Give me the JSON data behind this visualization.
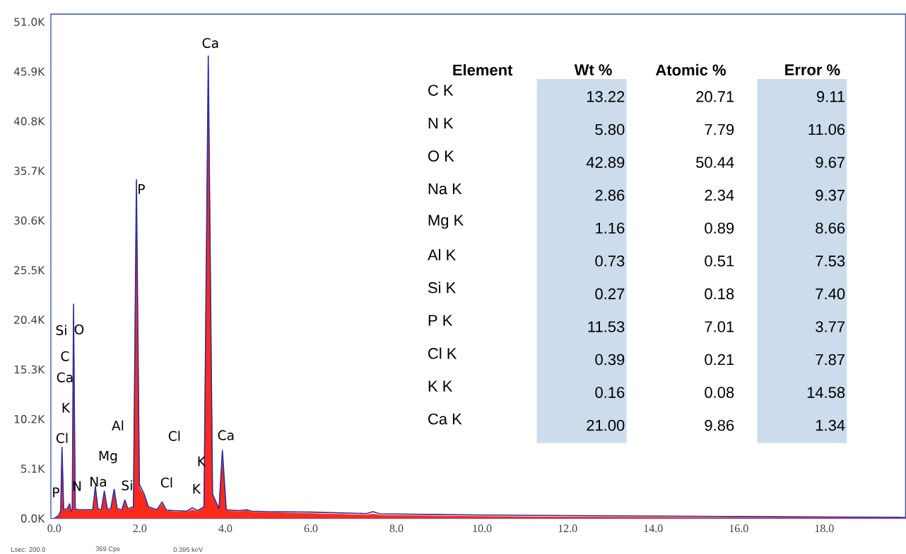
{
  "chart_data": {
    "type": "area",
    "x": [
      0,
      0.1,
      0.15,
      0.18,
      0.22,
      0.3,
      0.36,
      0.39,
      0.42,
      0.45,
      0.49,
      0.55,
      0.7,
      0.9,
      0.96,
      1.02,
      1.1,
      1.17,
      1.24,
      1.32,
      1.4,
      1.47,
      1.58,
      1.65,
      1.72,
      1.85,
      1.92,
      1.99,
      2.1,
      2.2,
      2.4,
      2.52,
      2.62,
      2.8,
      3.1,
      3.23,
      3.35,
      3.5,
      3.6,
      3.7,
      3.85,
      3.93,
      4.02,
      4.3,
      4.5,
      4.6,
      5.0,
      6.0,
      7.3,
      7.45,
      7.6,
      9.0,
      10.0,
      12.0,
      14.0,
      16.0,
      18.0,
      19.9
    ],
    "series": [
      {
        "color": "#ff2a1a",
        "values": [
          0,
          200,
          700,
          6800,
          800,
          900,
          1300,
          600,
          800,
          20500,
          900,
          800,
          800,
          800,
          2900,
          900,
          800,
          2500,
          850,
          900,
          2700,
          900,
          800,
          1700,
          900,
          1100,
          33000,
          3200,
          2300,
          1100,
          800,
          1500,
          750,
          700,
          650,
          900,
          700,
          1100,
          46500,
          2300,
          900,
          6600,
          800,
          700,
          800,
          650,
          600,
          500,
          350,
          450,
          330,
          250,
          200,
          150,
          120,
          100,
          80,
          50
        ]
      },
      {
        "type": "line",
        "color": "#2a2fa0",
        "values": [
          0,
          300,
          800,
          7300,
          900,
          1000,
          1500,
          700,
          900,
          22000,
          1000,
          900,
          900,
          900,
          3300,
          1000,
          900,
          2800,
          950,
          1000,
          3000,
          1000,
          900,
          1900,
          1000,
          1200,
          34800,
          3500,
          2500,
          1200,
          900,
          1700,
          850,
          800,
          750,
          1100,
          800,
          1200,
          47500,
          2500,
          1000,
          7000,
          900,
          800,
          900,
          750,
          700,
          650,
          500,
          700,
          480,
          400,
          350,
          300,
          250,
          200,
          150,
          100
        ]
      }
    ],
    "xlim": [
      -0.08,
      19.9
    ],
    "ylim": [
      0,
      51800
    ],
    "xticks": [
      {
        "value": 0,
        "label": "0.0"
      },
      {
        "value": 2,
        "label": "2.0"
      },
      {
        "value": 4,
        "label": "4.0"
      },
      {
        "value": 6,
        "label": "6.0"
      },
      {
        "value": 8,
        "label": "8.0"
      },
      {
        "value": 10,
        "label": "10.0"
      },
      {
        "value": 12,
        "label": "12.0"
      },
      {
        "value": 14,
        "label": "14.0"
      },
      {
        "value": 16,
        "label": "16.0"
      },
      {
        "value": 18,
        "label": "18.0"
      }
    ],
    "yticks": [
      {
        "value": 0,
        "label": "0.0K"
      },
      {
        "value": 5100,
        "label": "5.1K"
      },
      {
        "value": 10200,
        "label": "10.2K"
      },
      {
        "value": 15300,
        "label": "15.3K"
      },
      {
        "value": 20400,
        "label": "20.4K"
      },
      {
        "value": 25500,
        "label": "25.5K"
      },
      {
        "value": 30600,
        "label": "30.6K"
      },
      {
        "value": 35700,
        "label": "35.7K"
      },
      {
        "value": 40800,
        "label": "40.8K"
      },
      {
        "value": 45900,
        "label": "45.9K"
      },
      {
        "value": 51000,
        "label": "51.0K"
      }
    ],
    "annotations": [
      "Element",
      "Wt %",
      "Atomic %",
      "Error %",
      "C  K",
      "13.22",
      "20.71",
      "9.11",
      "N  K",
      "5.80",
      "7.79",
      "11.06",
      "O  K",
      "42.89",
      "50.44",
      "9.67",
      "Na K",
      "2.86",
      "2.34",
      "9.37",
      "Mg K",
      "1.16",
      "0.89",
      "8.66",
      "Al K",
      "0.73",
      "0.51",
      "7.53",
      "Si K",
      "0.27",
      "0.18",
      "7.40",
      "P  K",
      "11.53",
      "7.01",
      "3.77",
      "Cl K",
      "0.39",
      "0.21",
      "7.87",
      "K  K",
      "0.16",
      "0.08",
      "14.58",
      "Ca K",
      "21.00",
      "9.86",
      "1.34",
      "Lsec: 200.0",
      "369 Cps",
      "0.395 keV",
      "Ca",
      "P",
      "Si",
      "O",
      "C",
      "Ca",
      "K",
      "Cl",
      "P",
      "N",
      "Na",
      "Mg",
      "Al",
      "Si",
      "Cl",
      "Cl",
      "K",
      "K",
      "Ca"
    ]
  }
}
